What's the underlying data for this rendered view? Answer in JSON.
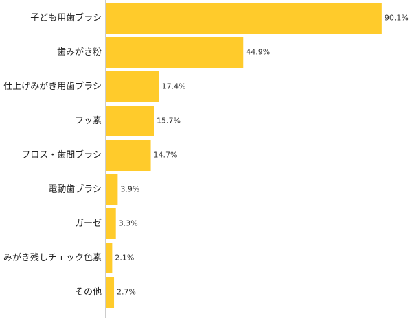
{
  "chart_data": {
    "type": "bar",
    "orientation": "horizontal",
    "categories": [
      "子ども用歯ブラシ",
      "歯みがき粉",
      "仕上げみがき用歯ブラシ",
      "フッ素",
      "フロス・歯間ブラシ",
      "電動歯ブラシ",
      "ガーゼ",
      "みがき残しチェック色素",
      "その他"
    ],
    "values": [
      90.1,
      44.9,
      17.4,
      15.7,
      14.7,
      3.9,
      3.3,
      2.1,
      2.7
    ],
    "value_labels": [
      "90.1%",
      "44.9%",
      "17.4%",
      "15.7%",
      "14.7%",
      "3.9%",
      "3.3%",
      "2.1%",
      "2.7%"
    ],
    "xlim": [
      0,
      100
    ],
    "unit": "%",
    "bar_color": "#FFCB2B",
    "axis_color": "#999999",
    "grid": false,
    "legend": "none"
  }
}
